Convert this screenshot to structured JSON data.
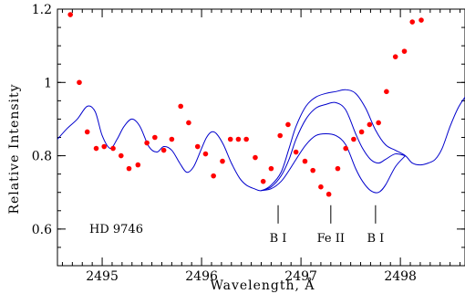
{
  "chart_data": {
    "type": "scatter",
    "title": "",
    "xlabel": "Wavelength, Å",
    "ylabel": "Relative Intensity",
    "xlim": [
      2494.55,
      2498.65
    ],
    "ylim": [
      0.5,
      1.2
    ],
    "grid": false,
    "x_ticks": [
      2495,
      2496,
      2497,
      2498
    ],
    "x_tick_labels": [
      "2495",
      "2496",
      "2497",
      "2498"
    ],
    "y_ticks": [
      0.6,
      0.8,
      1.0,
      1.2
    ],
    "y_tick_labels": [
      "0.6",
      "0.8",
      "1",
      "1.2"
    ],
    "star_label": "HD 9746",
    "line_markers": [
      {
        "label": "B I",
        "x": 2496.77
      },
      {
        "label": "Fe II",
        "x": 2497.3
      },
      {
        "label": "B I",
        "x": 2497.75
      }
    ],
    "observed": {
      "color": "#ff0000",
      "x": [
        2494.68,
        2494.77,
        2494.85,
        2494.94,
        2495.02,
        2495.11,
        2495.19,
        2495.27,
        2495.36,
        2495.45,
        2495.53,
        2495.62,
        2495.7,
        2495.79,
        2495.87,
        2495.96,
        2496.04,
        2496.12,
        2496.21,
        2496.29,
        2496.37,
        2496.45,
        2496.54,
        2496.62,
        2496.7,
        2496.79,
        2496.87,
        2496.95,
        2497.04,
        2497.12,
        2497.2,
        2497.28,
        2497.37,
        2497.45,
        2497.53,
        2497.61,
        2497.69,
        2497.78,
        2497.86,
        2497.95,
        2498.04,
        2498.12,
        2498.21
      ],
      "y": [
        1.185,
        1.0,
        0.865,
        0.82,
        0.825,
        0.82,
        0.8,
        0.765,
        0.775,
        0.835,
        0.85,
        0.815,
        0.845,
        0.935,
        0.89,
        0.825,
        0.805,
        0.745,
        0.785,
        0.845,
        0.845,
        0.845,
        0.795,
        0.73,
        0.765,
        0.855,
        0.885,
        0.81,
        0.785,
        0.76,
        0.715,
        0.695,
        0.765,
        0.82,
        0.845,
        0.865,
        0.885,
        0.89,
        0.975,
        1.07,
        1.085,
        1.165,
        1.17
      ]
    },
    "series": [
      {
        "color": "#0000cc",
        "x": [
          2494.55,
          2494.65,
          2494.75,
          2494.85,
          2494.93,
          2495.0,
          2495.08,
          2495.15,
          2495.22,
          2495.3,
          2495.38,
          2495.47,
          2495.55,
          2495.62,
          2495.7,
          2495.78,
          2495.85,
          2495.92,
          2496.0,
          2496.05,
          2496.1,
          2496.15,
          2496.22,
          2496.3,
          2496.38,
          2496.45,
          2496.53,
          2496.6,
          2496.7,
          2496.8,
          2496.88,
          2496.95,
          2497.05,
          2497.15,
          2497.25,
          2497.35,
          2497.45,
          2497.55,
          2497.65,
          2497.75,
          2497.85,
          2497.95,
          2498.05,
          2498.12,
          2498.2,
          2498.28,
          2498.35,
          2498.42,
          2498.5,
          2498.58,
          2498.65
        ],
        "y": [
          0.845,
          0.875,
          0.9,
          0.935,
          0.92,
          0.855,
          0.82,
          0.845,
          0.88,
          0.9,
          0.88,
          0.825,
          0.81,
          0.825,
          0.815,
          0.78,
          0.755,
          0.77,
          0.82,
          0.85,
          0.865,
          0.86,
          0.83,
          0.78,
          0.74,
          0.72,
          0.71,
          0.705,
          0.72,
          0.755,
          0.82,
          0.88,
          0.935,
          0.96,
          0.97,
          0.975,
          0.98,
          0.97,
          0.93,
          0.87,
          0.83,
          0.815,
          0.8,
          0.78,
          0.775,
          0.78,
          0.79,
          0.82,
          0.88,
          0.93,
          0.96
        ]
      },
      {
        "color": "#0000cc",
        "x": [
          2496.6,
          2496.7,
          2496.8,
          2496.88,
          2496.95,
          2497.05,
          2497.15,
          2497.25,
          2497.35,
          2497.45,
          2497.55,
          2497.62,
          2497.7,
          2497.78,
          2497.85,
          2497.95,
          2498.05
        ],
        "y": [
          0.705,
          0.715,
          0.745,
          0.79,
          0.845,
          0.9,
          0.93,
          0.94,
          0.945,
          0.925,
          0.86,
          0.82,
          0.79,
          0.78,
          0.79,
          0.805,
          0.8
        ]
      },
      {
        "color": "#0000cc",
        "x": [
          2496.6,
          2496.7,
          2496.8,
          2496.88,
          2496.95,
          2497.05,
          2497.15,
          2497.25,
          2497.35,
          2497.45,
          2497.55,
          2497.62,
          2497.7,
          2497.78,
          2497.85,
          2497.95,
          2498.05
        ],
        "y": [
          0.705,
          0.71,
          0.73,
          0.76,
          0.79,
          0.83,
          0.855,
          0.86,
          0.855,
          0.83,
          0.765,
          0.73,
          0.705,
          0.7,
          0.72,
          0.77,
          0.8
        ]
      }
    ]
  }
}
